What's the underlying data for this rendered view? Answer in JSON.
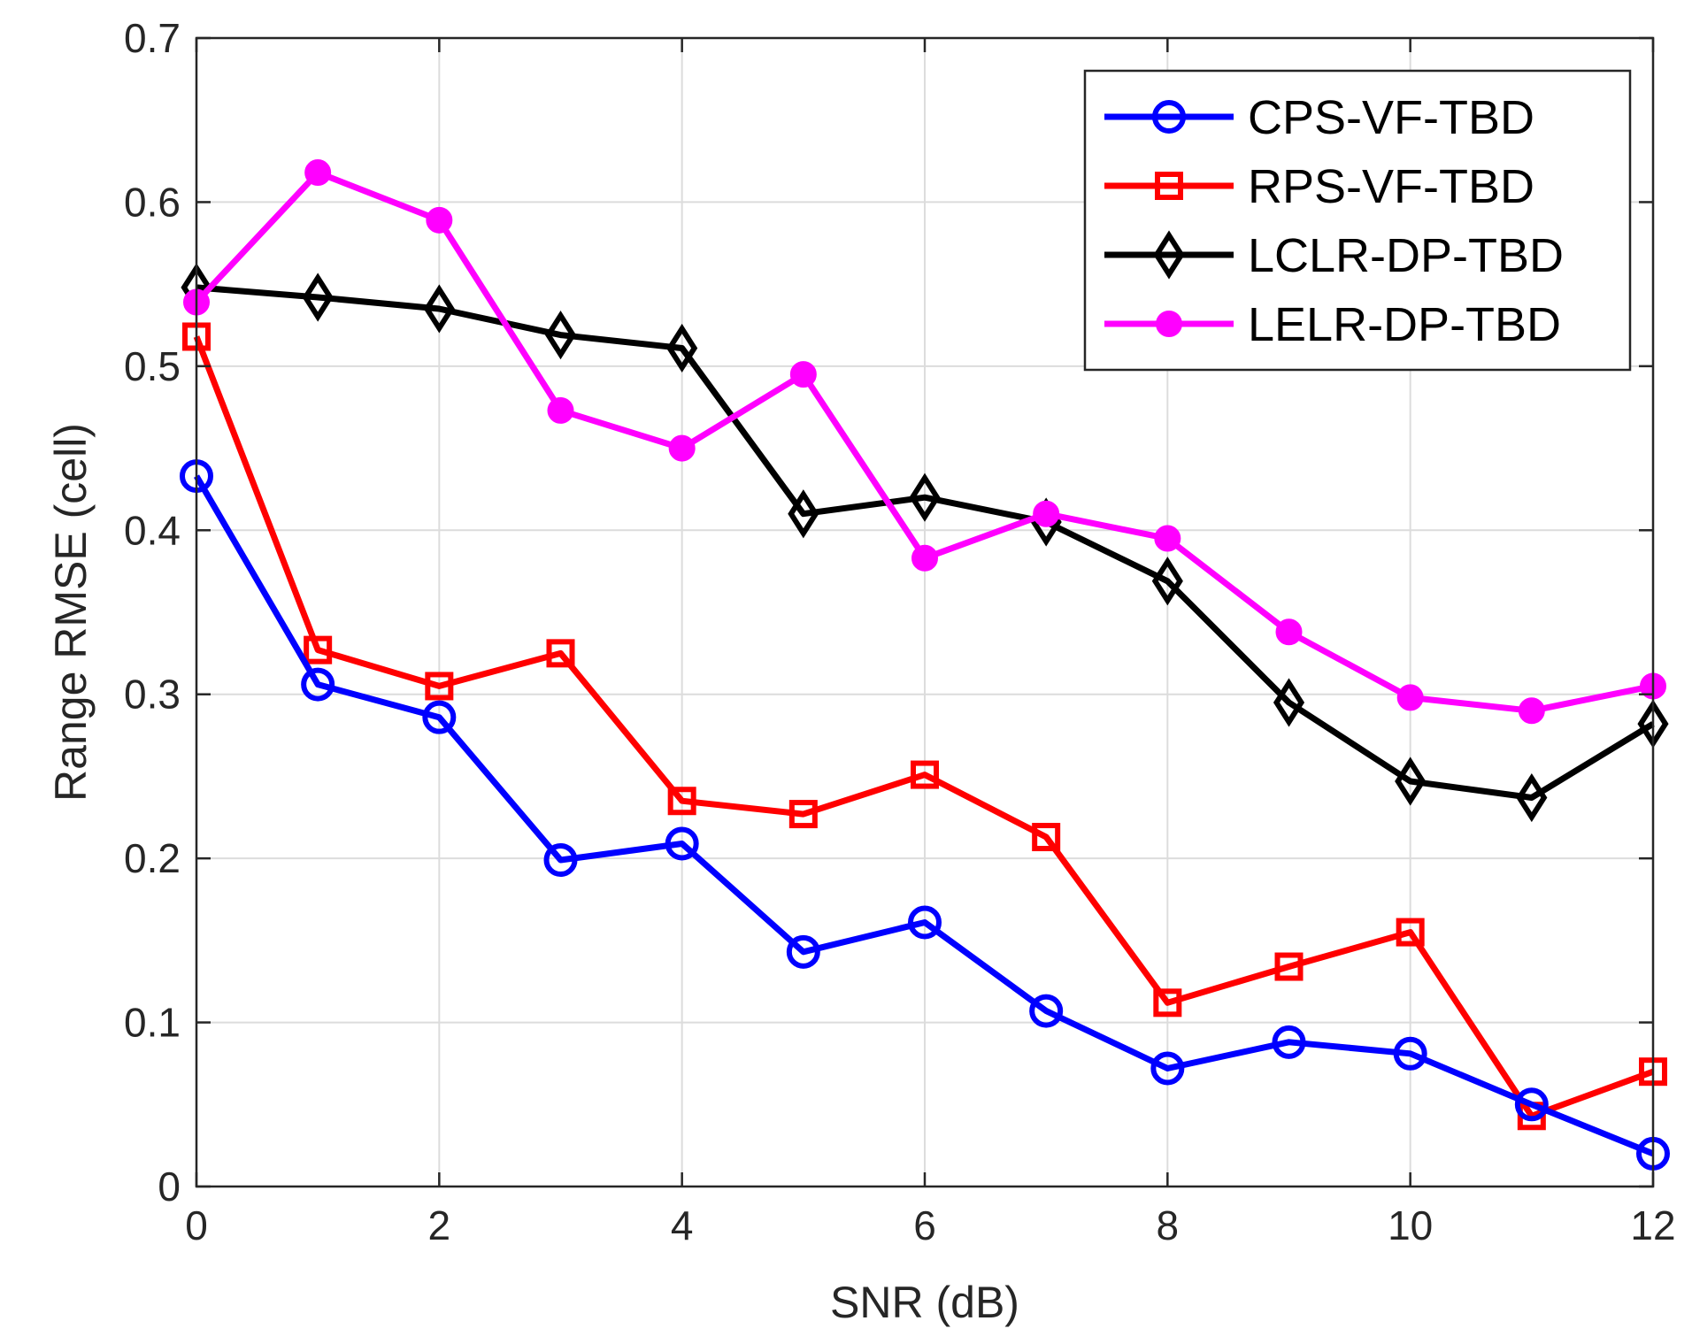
{
  "chart_data": {
    "type": "line",
    "title": "",
    "xlabel": "SNR (dB)",
    "ylabel": "Range RMSE (cell)",
    "xlim": [
      0,
      12
    ],
    "ylim": [
      0,
      0.7
    ],
    "xticks": [
      "0",
      "2",
      "4",
      "6",
      "8",
      "10",
      "12"
    ],
    "yticks": [
      "0",
      "0.1",
      "0.2",
      "0.3",
      "0.4",
      "0.5",
      "0.6",
      "0.7"
    ],
    "grid": true,
    "legend_position": "top-right",
    "x": [
      0,
      1,
      2,
      3,
      4,
      5,
      6,
      7,
      8,
      9,
      10,
      11,
      12
    ],
    "series": [
      {
        "name": "CPS-VF-TBD",
        "color": "#0000ff",
        "marker": "circle-open",
        "values": [
          0.433,
          0.306,
          0.286,
          0.199,
          0.209,
          0.143,
          0.161,
          0.107,
          0.072,
          0.088,
          0.081,
          0.05,
          0.02
        ]
      },
      {
        "name": "RPS-VF-TBD",
        "color": "#ff0000",
        "marker": "square-open",
        "values": [
          0.518,
          0.327,
          0.305,
          0.325,
          0.235,
          0.227,
          0.251,
          0.213,
          0.112,
          0.134,
          0.155,
          0.043,
          0.07
        ]
      },
      {
        "name": "LCLR-DP-TBD",
        "color": "#000000",
        "marker": "diamond-open",
        "values": [
          0.548,
          0.542,
          0.535,
          0.519,
          0.511,
          0.41,
          0.42,
          0.405,
          0.369,
          0.295,
          0.247,
          0.237,
          0.282
        ]
      },
      {
        "name": "LELR-DP-TBD",
        "color": "#ff00ff",
        "marker": "circle-filled",
        "values": [
          0.539,
          0.618,
          0.589,
          0.473,
          0.45,
          0.495,
          0.383,
          0.41,
          0.395,
          0.338,
          0.298,
          0.29,
          0.305
        ]
      }
    ]
  }
}
